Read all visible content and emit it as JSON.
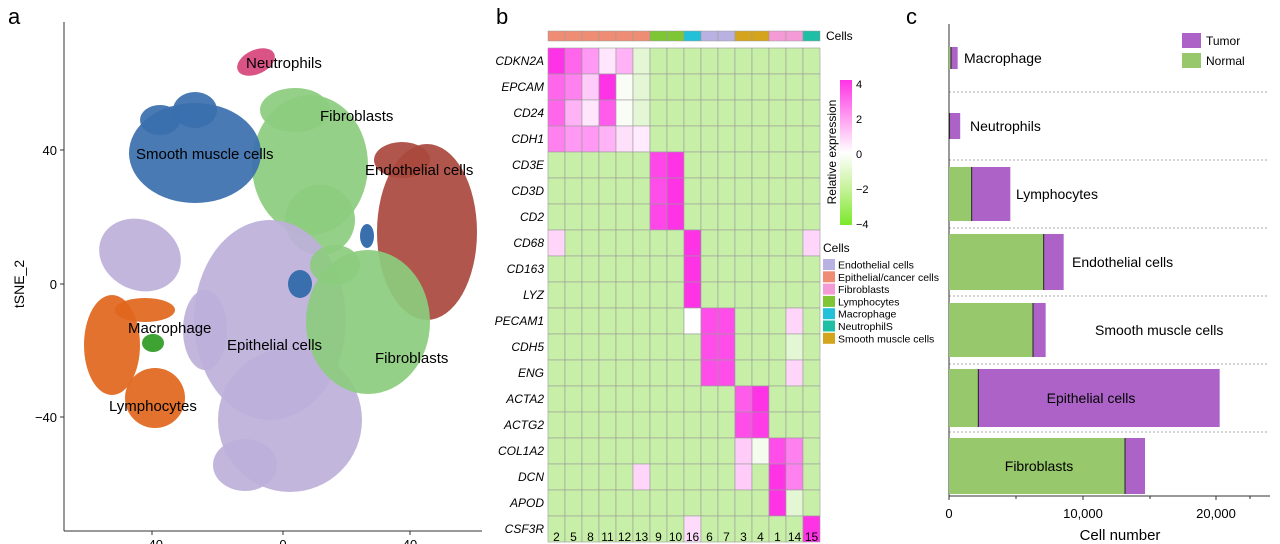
{
  "panels": {
    "a": {
      "label": "a"
    },
    "b": {
      "label": "b"
    },
    "c": {
      "label": "c"
    }
  },
  "chart_data": [
    {
      "type": "scatter",
      "panel": "a",
      "ylabel": "tSNE_2",
      "xlabel": "",
      "yticks": [
        "40",
        "0",
        "−40"
      ],
      "xticks": [
        "−40",
        "0",
        "40"
      ],
      "ylim": [
        -80,
        75
      ],
      "xlim": [
        -70,
        65
      ],
      "clusters": [
        {
          "name": "Neutrophils",
          "color": "#d6457a"
        },
        {
          "name": "Fibroblasts",
          "color": "#8ccc7e"
        },
        {
          "name": "Smooth muscle cells",
          "color": "#3a6fae"
        },
        {
          "name": "Endothelial cells",
          "color": "#a9483d"
        },
        {
          "name": "Macrophage",
          "color": "#2f9b22"
        },
        {
          "name": "Epithelial cells",
          "color": "#bdb0da"
        },
        {
          "name": "Fibroblasts",
          "color": "#8ccc7e"
        },
        {
          "name": "Lymphocytes",
          "color": "#e0661c"
        }
      ]
    },
    {
      "type": "heatmap",
      "panel": "b",
      "top_label": "Cells",
      "genes": [
        "CDKN2A",
        "EPCAM",
        "CD24",
        "CDH1",
        "CD3E",
        "CD3D",
        "CD2",
        "CD68",
        "CD163",
        "LYZ",
        "PECAM1",
        "CDH5",
        "ENG",
        "ACTA2",
        "ACTG2",
        "COL1A2",
        "DCN",
        "APOD",
        "CSF3R"
      ],
      "columns": [
        "2",
        "5",
        "8",
        "11",
        "12",
        "13",
        "9",
        "10",
        "16",
        "6",
        "7",
        "3",
        "4",
        "1",
        "14",
        "15"
      ],
      "column_groups": [
        {
          "name": "Epithelial/cancer cells",
          "color": "#ef8c74",
          "count": 6
        },
        {
          "name": "Lymphocytes",
          "color": "#7fc637",
          "count": 2
        },
        {
          "name": "Macrophage",
          "color": "#22c1d9",
          "count": 1
        },
        {
          "name": "Endothelial cells",
          "color": "#b9b1e2",
          "count": 2
        },
        {
          "name": "Smooth muscle cells",
          "color": "#d4a51c",
          "count": 2
        },
        {
          "name": "Fibroblasts",
          "color": "#f49ad6",
          "count": 2
        },
        {
          "name": "NeutrophilS",
          "color": "#1fbfa6",
          "count": 1
        }
      ],
      "values": [
        [
          4,
          3,
          2,
          0.5,
          1.5,
          -0.5,
          -1,
          -1,
          -1,
          -1,
          -1,
          -1,
          -1,
          -1,
          -1,
          -1
        ],
        [
          3,
          2.5,
          1,
          4,
          -0.1,
          -0.5,
          -1,
          -1,
          -1,
          -1,
          -1,
          -1,
          -1,
          -1,
          -1,
          -1
        ],
        [
          3,
          1.5,
          0.5,
          3.2,
          -0.1,
          -0.5,
          -1,
          -1,
          -1,
          -1,
          -1,
          -1,
          -1,
          -1,
          -1,
          -1
        ],
        [
          2.5,
          2,
          2,
          1.5,
          0.6,
          0.4,
          -1,
          -1,
          -1,
          -1,
          -1,
          -1,
          -1,
          -1,
          -1,
          -1
        ],
        [
          -1,
          -1,
          -1,
          -1,
          -1,
          -1,
          3.6,
          4,
          -1,
          -1,
          -1,
          -1,
          -1,
          -1,
          -1,
          -1
        ],
        [
          -1,
          -1,
          -1,
          -1,
          -1,
          -1,
          3.5,
          4,
          -1,
          -1,
          -1,
          -1,
          -1,
          -1,
          -1,
          -1
        ],
        [
          -1,
          -1,
          -1,
          -1,
          -1,
          -1,
          3.6,
          4,
          -1,
          -1,
          -1,
          -1,
          -1,
          -1,
          -1,
          -1
        ],
        [
          0.8,
          -1,
          -1,
          -1,
          -1,
          -1,
          -1,
          -1,
          4,
          -1,
          -1,
          -1,
          -1,
          -1,
          -1,
          0.8
        ],
        [
          -1,
          -1,
          -1,
          -1,
          -1,
          -1,
          -1,
          -1,
          4,
          -1,
          -1,
          -1,
          -1,
          -1,
          -1,
          -1
        ],
        [
          -1,
          -1,
          -1,
          -1,
          -1,
          -1,
          -1,
          -1,
          4,
          -1,
          -1,
          -1,
          -1,
          -1,
          -1,
          -1
        ],
        [
          -1,
          -1,
          -1,
          -1,
          -1,
          -1,
          -1,
          -1,
          0,
          3.5,
          3.5,
          -1,
          -1,
          -1,
          0.8,
          -1
        ],
        [
          -1,
          -1,
          -1,
          -1,
          -1,
          -1,
          -1,
          -1,
          -1,
          3.5,
          3.5,
          -1,
          -1,
          -1,
          -0.5,
          -1
        ],
        [
          -1,
          -1,
          -1,
          -1,
          -1,
          -1,
          -1,
          -1,
          -1,
          3.5,
          3.5,
          -1,
          -1,
          -1,
          0.8,
          -1
        ],
        [
          -1,
          -1,
          -1,
          -1,
          -1,
          -1,
          -1,
          -1,
          -1,
          -1,
          -1,
          3.2,
          4,
          -1,
          -1,
          -1
        ],
        [
          -1,
          -1,
          -1,
          -1,
          -1,
          -1,
          -1,
          -1,
          -1,
          -1,
          -1,
          3.5,
          3.8,
          -1,
          -1,
          -1
        ],
        [
          -1,
          -1,
          -1,
          -1,
          -1,
          -1,
          -1,
          -1,
          -1,
          -1,
          -1,
          1,
          -0.2,
          3.5,
          2.5,
          -1
        ],
        [
          -1,
          -1,
          -1,
          -1,
          -1,
          0.8,
          -1,
          -1,
          -1,
          -1,
          -1,
          1,
          -1,
          4,
          2.5,
          -1
        ],
        [
          -1,
          -1,
          -1,
          -1,
          -1,
          -1,
          -1,
          -1,
          -1,
          -1,
          -1,
          -1,
          -1,
          4,
          -0.5,
          -1
        ],
        [
          -1,
          -1,
          -1,
          -1,
          -1,
          -1,
          -1,
          -1,
          0.7,
          -1,
          -1,
          -1,
          -1,
          -1,
          -1,
          4
        ]
      ],
      "colorbar": {
        "title": "Relative expression",
        "ticks": [
          "4",
          "2",
          "0",
          "−2",
          "−4"
        ],
        "range": [
          -4,
          4
        ],
        "low_color": "#7be82a",
        "mid_color": "#ffffff",
        "high_color": "#ff33e6"
      },
      "legend": {
        "title": "Cells",
        "items": [
          {
            "label": "Endothelial cells",
            "color": "#b9b1e2"
          },
          {
            "label": "Epithelial/cancer cells",
            "color": "#ef8c74"
          },
          {
            "label": "Fibroblasts",
            "color": "#f49ad6"
          },
          {
            "label": "Lymphocytes",
            "color": "#7fc637"
          },
          {
            "label": "Macrophage",
            "color": "#22c1d9"
          },
          {
            "label": "NeutrophilS",
            "color": "#1fbfa6"
          },
          {
            "label": "Smooth muscle cells",
            "color": "#d4a51c"
          }
        ]
      }
    },
    {
      "type": "bar",
      "panel": "c",
      "orientation": "horizontal",
      "stacked": true,
      "xlabel": "Cell number",
      "xticks": [
        "0",
        "10,000",
        "20,000"
      ],
      "xlim": [
        0,
        26000
      ],
      "categories": [
        "Macrophage",
        "Neutrophils",
        "Lymphocytes",
        "Endothelial cells",
        "Smooth muscle cells",
        "Epithelial cells",
        "Fibroblasts"
      ],
      "series": [
        {
          "name": "Normal",
          "color": "#98c86c",
          "values": [
            150,
            40,
            1700,
            7100,
            6300,
            2200,
            13200
          ]
        },
        {
          "name": "Tumor",
          "color": "#ad62c8",
          "values": [
            500,
            800,
            2900,
            1500,
            950,
            18100,
            1500
          ]
        }
      ],
      "legend": [
        "Tumor",
        "Normal"
      ],
      "legend_position": "top-right"
    }
  ]
}
